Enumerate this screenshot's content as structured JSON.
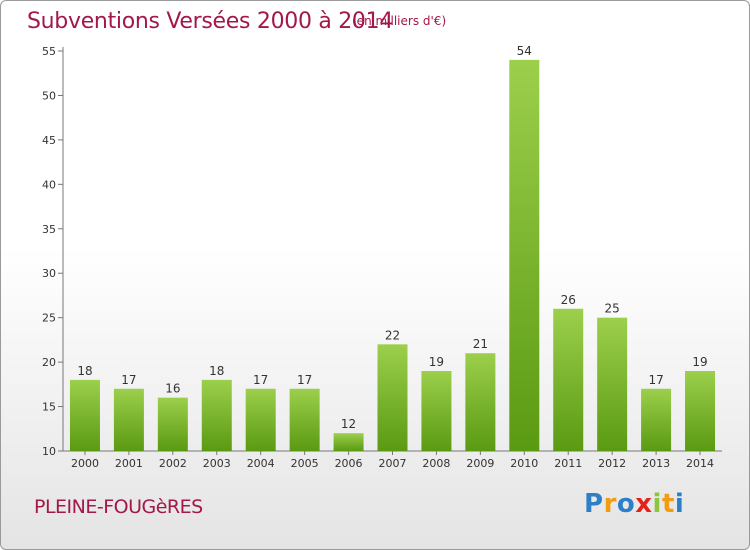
{
  "chart_data": {
    "type": "bar",
    "title": "Subventions Versées 2000 à 2014",
    "subtitle": "(en milliers d'€)",
    "categories": [
      "2000",
      "2001",
      "2002",
      "2003",
      "2004",
      "2005",
      "2006",
      "2007",
      "2008",
      "2009",
      "2010",
      "2011",
      "2012",
      "2013",
      "2014"
    ],
    "values": [
      18,
      17,
      16,
      18,
      17,
      17,
      12,
      22,
      19,
      21,
      54,
      26,
      25,
      17,
      19
    ],
    "ylim": [
      10,
      55
    ],
    "yticks": [
      "10",
      "15",
      "20",
      "25",
      "30",
      "35",
      "40",
      "45",
      "50",
      "55"
    ],
    "grid": false,
    "bar_color_top": "#9ccf4c",
    "bar_color_bottom": "#5a9a12"
  },
  "location": "PLEINE-FOUGèRES",
  "logo": {
    "letters": [
      "P",
      "r",
      "o",
      "x",
      "i",
      "t",
      "i"
    ],
    "colors": [
      "#2d7fc7",
      "#f39c12",
      "#2d7fc7",
      "#e2231a",
      "#8cc63f",
      "#f39c12",
      "#2d7fc7"
    ]
  }
}
